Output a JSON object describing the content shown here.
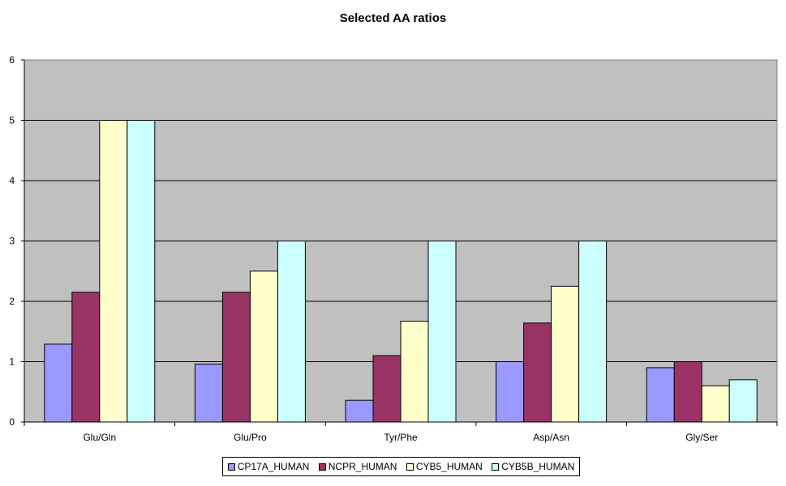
{
  "chart_data": {
    "type": "bar",
    "title": "Selected AA ratios",
    "xlabel": "",
    "ylabel": "",
    "ylim": [
      0,
      6
    ],
    "yticks": [
      "0",
      "1",
      "2",
      "3",
      "4",
      "5",
      "6"
    ],
    "grid": true,
    "legend_position": "bottom",
    "categories": [
      "Glu/Gln",
      "Glu/Pro",
      "Tyr/Phe",
      "Asp/Asn",
      "Gly/Ser"
    ],
    "series": [
      {
        "name": "CP17A_HUMAN",
        "color": "#9999ff",
        "values": [
          1.29,
          0.96,
          0.36,
          1.0,
          0.9
        ]
      },
      {
        "name": "NCPR_HUMAN",
        "color": "#993366",
        "values": [
          2.15,
          2.15,
          1.1,
          1.64,
          1.0
        ]
      },
      {
        "name": "CYB5_HUMAN",
        "color": "#ffffcc",
        "values": [
          5.0,
          2.5,
          1.67,
          2.25,
          0.6
        ]
      },
      {
        "name": "CYB5B_HUMAN",
        "color": "#ccffff",
        "values": [
          5.0,
          3.0,
          3.0,
          3.0,
          0.7
        ]
      }
    ],
    "plot_background": "#c0c0c0"
  }
}
